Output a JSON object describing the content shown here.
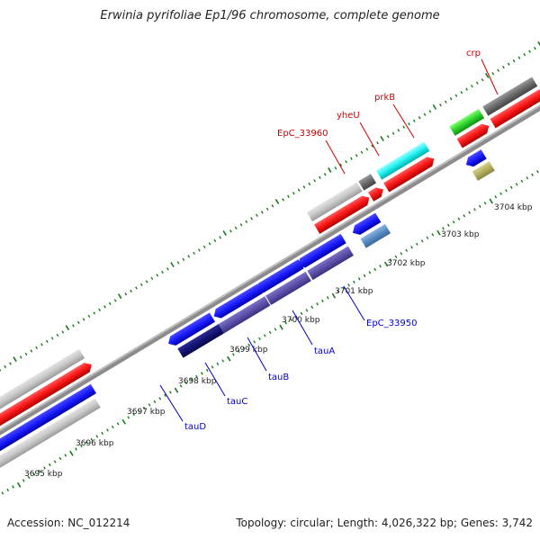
{
  "title": "Erwinia pyrifoliae Ep1/96 chromosome, complete genome",
  "footer": {
    "accession": "Accession: NC_012214",
    "info": "Topology: circular; Length: 4,026,322 bp; Genes: 3,742"
  },
  "colors": {
    "backbone": "#8c8c8c",
    "tick": "#1a7a1a",
    "forward_label": "#cc0000",
    "reverse_label": "#0000cc",
    "label_line_forward": "#cc0000",
    "label_line_reverse": "#0000cc"
  },
  "scale_labels": [
    "3695 kbp",
    "3696 kbp",
    "3697 kbp",
    "3698 kbp",
    "3699 kbp",
    "3700 kbp",
    "3701 kbp",
    "3702 kbp",
    "3703 kbp",
    "3704 kbp"
  ],
  "gene_labels": {
    "forward": [
      "EpC_33960",
      "yheU",
      "prkB",
      "crp"
    ],
    "reverse": [
      "EpC_33950",
      "tauA",
      "tauB",
      "tauC",
      "tauD"
    ]
  }
}
